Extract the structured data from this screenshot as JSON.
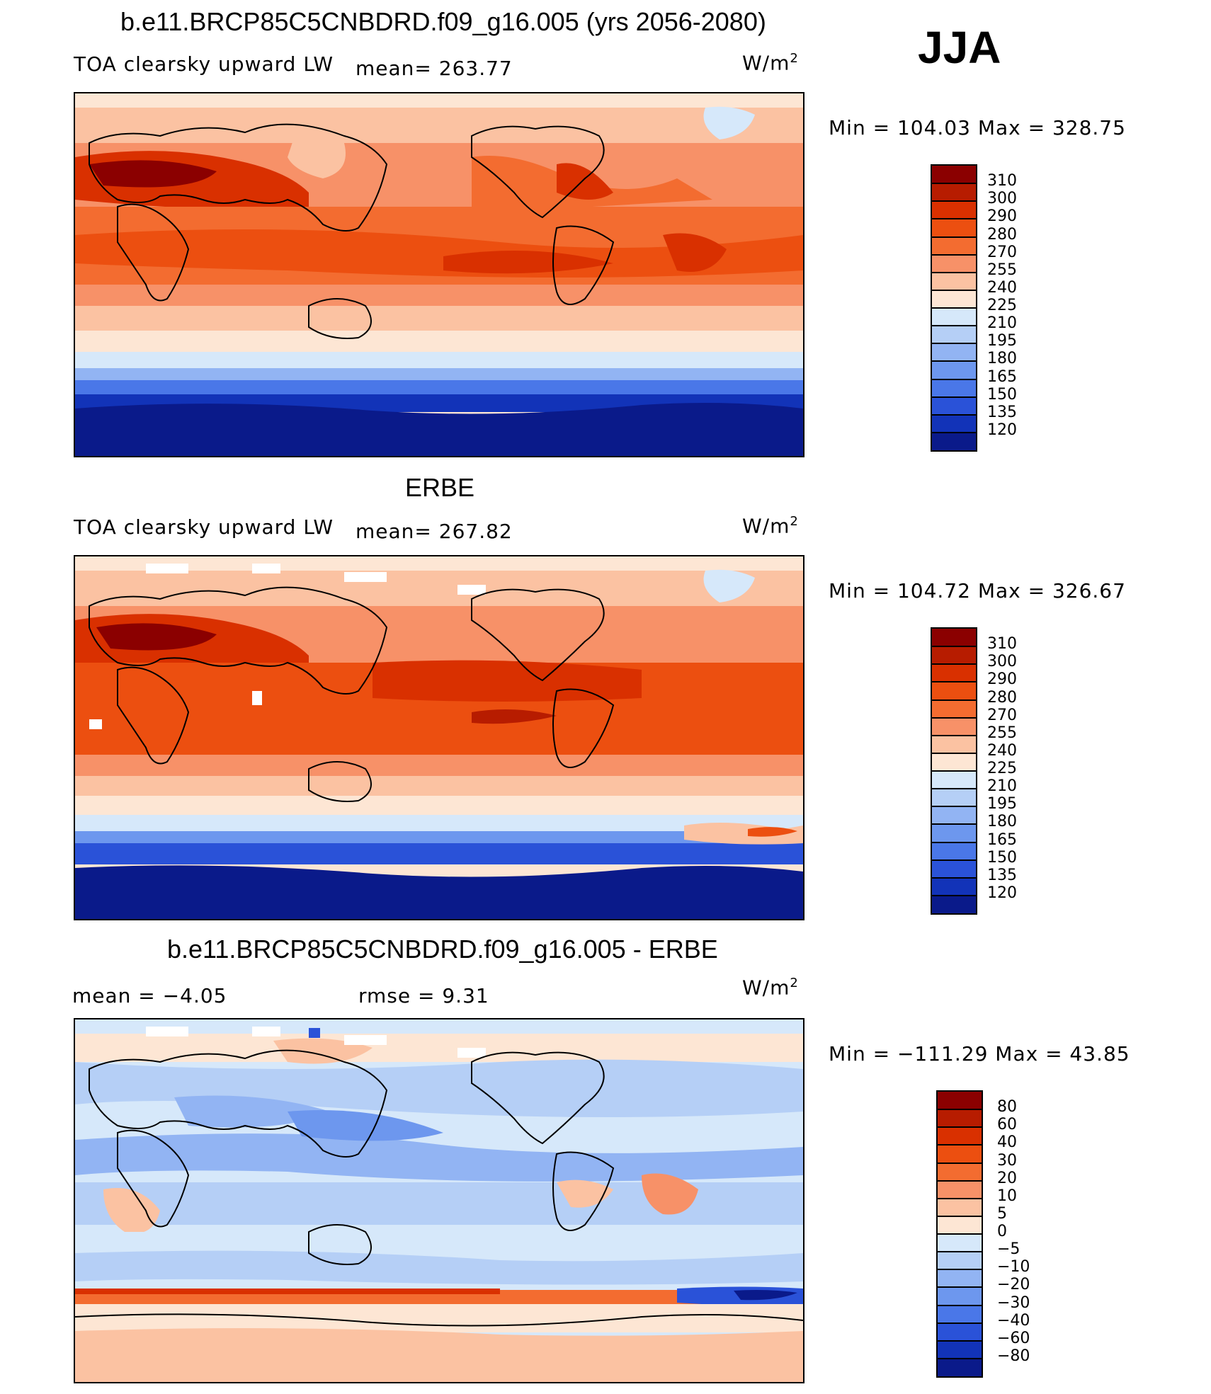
{
  "season_label": "JJA",
  "panels": [
    {
      "id": "model",
      "title": "b.e11.BRCP85C5CNBDRD.f09_g16.005 (yrs 2056-2080)",
      "left_text": "TOA clearsky upward LW",
      "mid_text": "mean= 263.77",
      "units_base": "W/m",
      "units_exp": "2",
      "stats": "Min  =  104.03  Max  =  328.75",
      "colorbar_labels": [
        "310",
        "300",
        "290",
        "280",
        "270",
        "255",
        "240",
        "225",
        "210",
        "195",
        "180",
        "165",
        "150",
        "135",
        "120"
      ]
    },
    {
      "id": "obs",
      "title": "ERBE",
      "left_text": "TOA clearsky upward LW",
      "mid_text": "mean= 267.82",
      "units_base": "W/m",
      "units_exp": "2",
      "stats": "Min  =  104.72  Max  =  326.67",
      "colorbar_labels": [
        "310",
        "300",
        "290",
        "280",
        "270",
        "255",
        "240",
        "225",
        "210",
        "195",
        "180",
        "165",
        "150",
        "135",
        "120"
      ]
    },
    {
      "id": "diff",
      "title": "b.e11.BRCP85C5CNBDRD.f09_g16.005 - ERBE",
      "left_text": "mean  =    −4.05",
      "mid_text": "rmse  =     9.31",
      "units_base": "W/m",
      "units_exp": "2",
      "stats": "Min  =  −111.29  Max  =    43.85",
      "colorbar_labels": [
        "80",
        "60",
        "40",
        "30",
        "20",
        "10",
        "5",
        "0",
        "−5",
        "−10",
        "−20",
        "−30",
        "−40",
        "−60",
        "−80"
      ]
    }
  ],
  "colors": {
    "abs_scale": [
      "#8b0000",
      "#b71c00",
      "#d93000",
      "#ec4f10",
      "#f36c30",
      "#f79168",
      "#fbc2a2",
      "#fde6d4",
      "#d6e8fa",
      "#b5cff6",
      "#92b4f3",
      "#6d97ee",
      "#4a77e8",
      "#2a52d8",
      "#1233b8",
      "#0a1a8a"
    ],
    "diff_scale": [
      "#8b0000",
      "#b71c00",
      "#d93000",
      "#ec4f10",
      "#f36c30",
      "#f79168",
      "#fbc2a2",
      "#fde6d4",
      "#d6e8fa",
      "#b5cff6",
      "#92b4f3",
      "#6d97ee",
      "#4a77e8",
      "#2a52d8",
      "#1233b8",
      "#0a1a8a"
    ]
  }
}
